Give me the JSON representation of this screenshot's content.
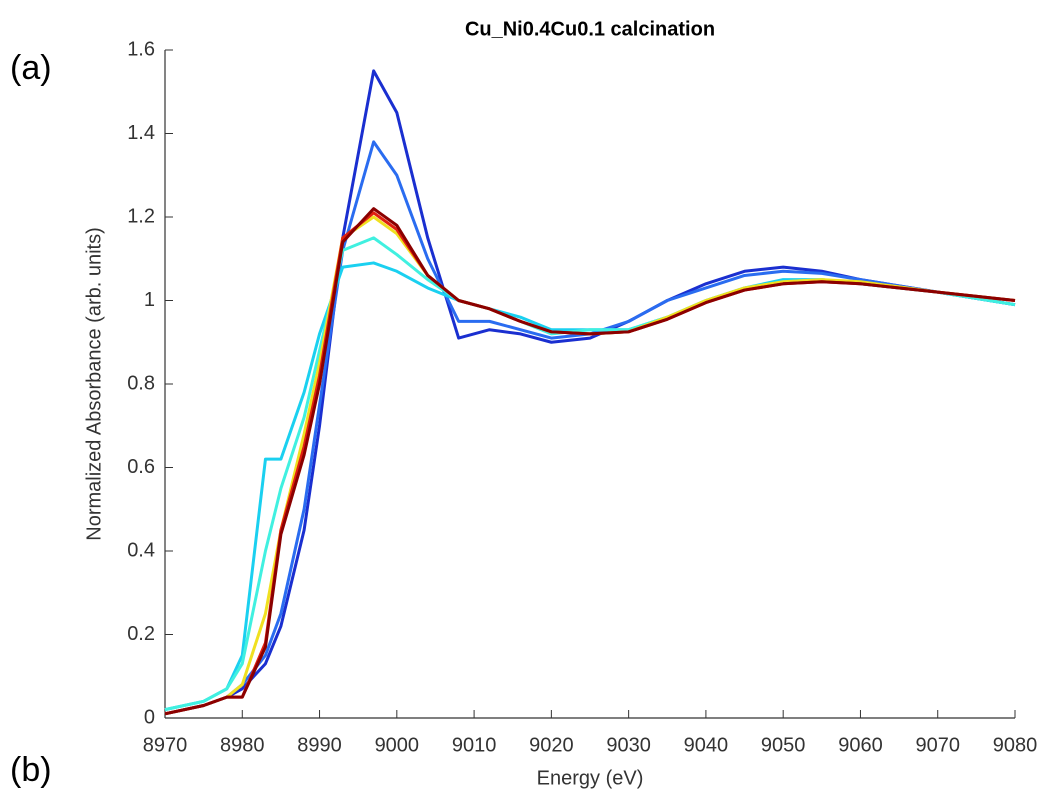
{
  "chart_data": {
    "type": "line",
    "title": "Cu_Ni0.4Cu0.1 calcination",
    "xlabel": "Energy (eV)",
    "ylabel": "Normalized Absorbance (arb. units)",
    "annotations": [
      "(a)",
      "(b)"
    ],
    "x": [
      8970,
      8975,
      8978,
      8980,
      8983,
      8985,
      8988,
      8990,
      8993,
      8997,
      9000,
      9004,
      9008,
      9012,
      9016,
      9020,
      9025,
      9030,
      9035,
      9040,
      9045,
      9050,
      9055,
      9060,
      9070,
      9080
    ],
    "series": [
      {
        "color": "#1a2fd0",
        "values": [
          0.01,
          0.03,
          0.05,
          0.07,
          0.13,
          0.22,
          0.45,
          0.7,
          1.15,
          1.55,
          1.45,
          1.15,
          0.91,
          0.93,
          0.92,
          0.9,
          0.91,
          0.95,
          1.0,
          1.04,
          1.07,
          1.08,
          1.07,
          1.05,
          1.02,
          0.99
        ]
      },
      {
        "color": "#2a6cf0",
        "values": [
          0.01,
          0.03,
          0.05,
          0.08,
          0.15,
          0.25,
          0.5,
          0.75,
          1.12,
          1.38,
          1.3,
          1.1,
          0.95,
          0.95,
          0.93,
          0.91,
          0.92,
          0.95,
          1.0,
          1.03,
          1.06,
          1.07,
          1.065,
          1.05,
          1.02,
          0.99
        ]
      },
      {
        "color": "#1ad0f0",
        "values": [
          0.02,
          0.04,
          0.07,
          0.15,
          0.62,
          0.62,
          0.78,
          0.92,
          1.08,
          1.09,
          1.07,
          1.03,
          1.0,
          0.98,
          0.96,
          0.93,
          0.93,
          0.93,
          0.96,
          1.0,
          1.03,
          1.05,
          1.05,
          1.04,
          1.02,
          0.99
        ]
      },
      {
        "color": "#40f0e0",
        "values": [
          0.02,
          0.04,
          0.07,
          0.13,
          0.4,
          0.55,
          0.72,
          0.88,
          1.12,
          1.15,
          1.11,
          1.05,
          1.0,
          0.98,
          0.95,
          0.92,
          0.93,
          0.93,
          0.96,
          1.0,
          1.03,
          1.045,
          1.05,
          1.04,
          1.02,
          0.99
        ]
      },
      {
        "color": "#f0e020",
        "values": [
          0.01,
          0.03,
          0.05,
          0.08,
          0.25,
          0.45,
          0.68,
          0.85,
          1.15,
          1.2,
          1.16,
          1.06,
          1.0,
          0.98,
          0.95,
          0.925,
          0.92,
          0.925,
          0.96,
          1.0,
          1.03,
          1.045,
          1.05,
          1.045,
          1.02,
          1.0
        ]
      },
      {
        "color": "#e02010",
        "values": [
          0.01,
          0.03,
          0.05,
          0.05,
          0.18,
          0.45,
          0.65,
          0.82,
          1.15,
          1.21,
          1.17,
          1.06,
          1.0,
          0.98,
          0.95,
          0.925,
          0.92,
          0.925,
          0.955,
          0.995,
          1.025,
          1.04,
          1.045,
          1.04,
          1.02,
          1.0
        ]
      },
      {
        "color": "#8b0000",
        "values": [
          0.01,
          0.03,
          0.05,
          0.05,
          0.17,
          0.44,
          0.63,
          0.8,
          1.14,
          1.22,
          1.18,
          1.06,
          1.0,
          0.98,
          0.95,
          0.925,
          0.92,
          0.925,
          0.955,
          0.995,
          1.025,
          1.04,
          1.045,
          1.04,
          1.02,
          1.0
        ]
      }
    ],
    "xlim": [
      8970,
      9080
    ],
    "xticks": [
      8970,
      8980,
      8990,
      9000,
      9010,
      9020,
      9030,
      9040,
      9050,
      9060,
      9070,
      9080
    ],
    "ylim": [
      0,
      1.6
    ],
    "yticks": [
      0,
      0.2,
      0.4,
      0.6,
      0.8,
      1,
      1.2,
      1.4,
      1.6
    ],
    "grid": false
  }
}
